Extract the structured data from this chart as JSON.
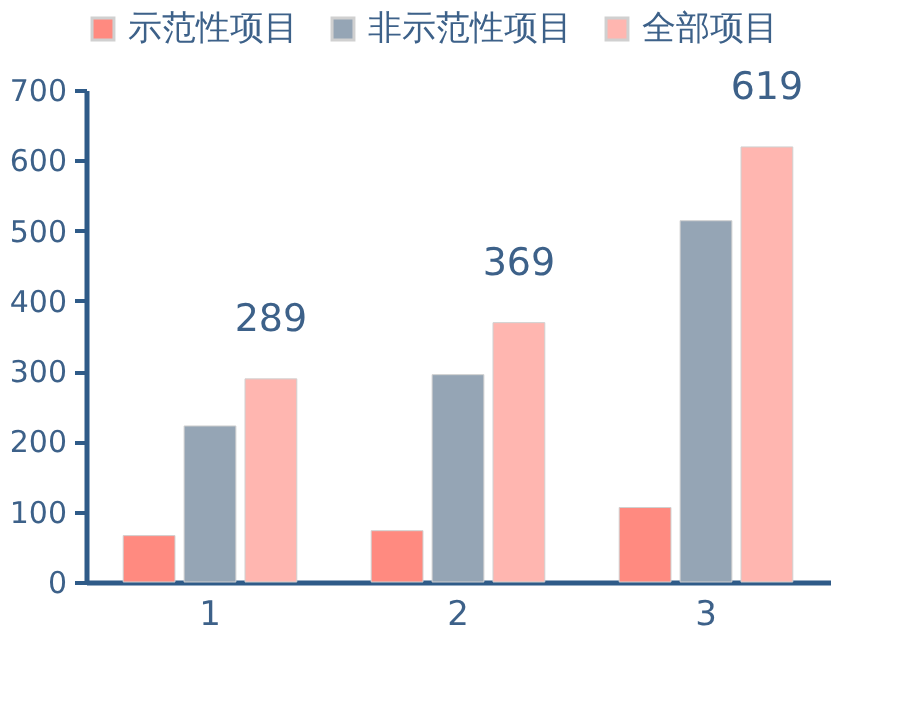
{
  "chart_data": {
    "type": "bar",
    "categories": [
      "1",
      "2",
      "3"
    ],
    "series": [
      {
        "name": "示范性项目",
        "color": "#ff8a80",
        "values": [
          66,
          73,
          106
        ]
      },
      {
        "name": "非示范性项目",
        "color": "#95a5b5",
        "values": [
          222,
          295,
          514
        ]
      },
      {
        "name": "全部项目",
        "color": "#ffb6b0",
        "values": [
          289,
          369,
          619
        ],
        "value_labels": [
          "289",
          "369",
          "619"
        ]
      }
    ],
    "ylim": [
      0,
      700
    ],
    "yticks": [
      0,
      100,
      200,
      300,
      400,
      500,
      600,
      700
    ],
    "grid": false,
    "legend": "top"
  }
}
